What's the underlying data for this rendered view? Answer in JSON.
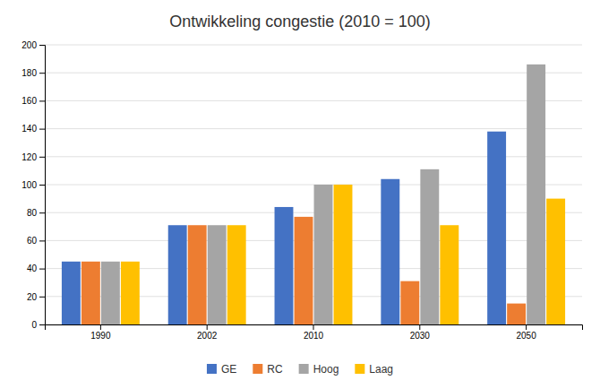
{
  "chart_data": {
    "type": "bar",
    "title": "Ontwikkeling congestie (2010 = 100)",
    "categories": [
      "1990",
      "2002",
      "2010",
      "2030",
      "2050"
    ],
    "series": [
      {
        "name": "GE",
        "color": "#4472C4",
        "values": [
          45,
          71,
          84,
          104,
          138
        ]
      },
      {
        "name": "RC",
        "color": "#ED7D31",
        "values": [
          45,
          71,
          77,
          31,
          15
        ]
      },
      {
        "name": "Hoog",
        "color": "#A5A5A5",
        "values": [
          45,
          71,
          100,
          111,
          186
        ]
      },
      {
        "name": "Laag",
        "color": "#FFC000",
        "values": [
          45,
          71,
          100,
          71,
          90
        ]
      }
    ],
    "ylim": [
      0,
      200
    ],
    "yticks": [
      0,
      20,
      40,
      60,
      80,
      100,
      120,
      140,
      160,
      180,
      200
    ],
    "grid": true,
    "legend": "bottom"
  }
}
